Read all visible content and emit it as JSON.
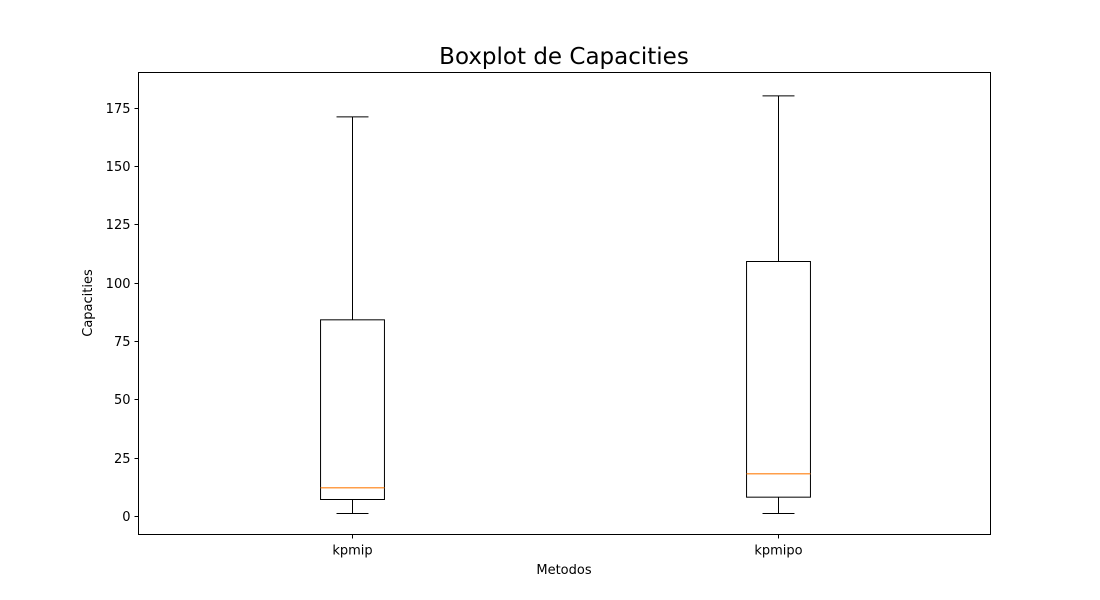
{
  "chart_data": {
    "type": "boxplot",
    "title": "Boxplot de Capacities",
    "xlabel": "Metodos",
    "ylabel": "Capacities",
    "ylim": [
      -8,
      190
    ],
    "yticks": [
      0,
      25,
      50,
      75,
      100,
      125,
      150,
      175
    ],
    "grid": false,
    "legend": "none",
    "categories": [
      "kpmip",
      "kpmipo"
    ],
    "boxes": [
      {
        "category": "kpmip",
        "whisker_low": 1,
        "q1": 7,
        "median": 12,
        "q3": 84,
        "whisker_high": 171
      },
      {
        "category": "kpmipo",
        "whisker_low": 1,
        "q1": 8,
        "median": 18,
        "q3": 109,
        "whisker_high": 180
      }
    ],
    "colors": {
      "box": "#000000",
      "median": "#ff7f0e"
    }
  }
}
